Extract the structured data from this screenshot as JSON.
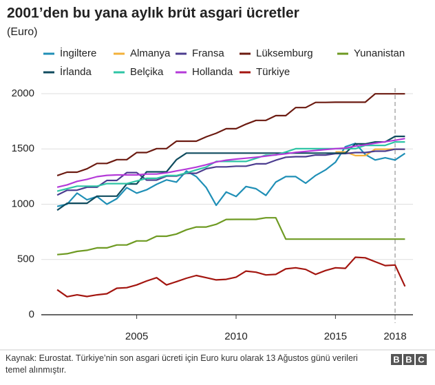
{
  "chart_data": {
    "type": "line",
    "title": "2001’den bu yana aylık brüt asgari ücretler",
    "subtitle": "(Euro)",
    "x": [
      2001,
      2001.5,
      2002,
      2002.5,
      2003,
      2003.5,
      2004,
      2004.5,
      2005,
      2005.5,
      2006,
      2006.5,
      2007,
      2007.5,
      2008,
      2008.5,
      2009,
      2009.5,
      2010,
      2010.5,
      2011,
      2011.5,
      2012,
      2012.5,
      2013,
      2013.5,
      2014,
      2014.5,
      2015,
      2015.5,
      2016,
      2016.5,
      2017,
      2017.5,
      2018,
      2018.5
    ],
    "xlim": [
      2000.2,
      2018.9
    ],
    "xticks": [
      2005,
      2010,
      2015,
      2018
    ],
    "ylim": [
      0,
      2000
    ],
    "yticks": [
      0,
      500,
      1000,
      1500,
      2000
    ],
    "grid": true,
    "reference_line_x": 2018,
    "series": [
      {
        "name": "İngiltere",
        "color": "#1f8fb6",
        "values": [
          980,
          1000,
          1100,
          1040,
          1070,
          1000,
          1050,
          1150,
          1100,
          1130,
          1180,
          1220,
          1200,
          1300,
          1250,
          1150,
          990,
          1110,
          1070,
          1160,
          1140,
          1080,
          1200,
          1250,
          1250,
          1190,
          1260,
          1310,
          1380,
          1520,
          1550,
          1450,
          1400,
          1420,
          1400,
          1460
        ]
      },
      {
        "name": "Almanya",
        "color": "#f3b13a",
        "values": [
          null,
          null,
          null,
          null,
          null,
          null,
          null,
          null,
          null,
          null,
          null,
          null,
          null,
          null,
          null,
          null,
          null,
          null,
          null,
          null,
          null,
          null,
          null,
          null,
          null,
          null,
          null,
          null,
          1473,
          1473,
          1440,
          1440,
          1498,
          1498,
          1498,
          1498
        ]
      },
      {
        "name": "Fransa",
        "color": "#4b3c8f",
        "values": [
          1083,
          1126,
          1127,
          1154,
          1154,
          1215,
          1215,
          1286,
          1286,
          1218,
          1218,
          1254,
          1254,
          1280,
          1280,
          1321,
          1338,
          1338,
          1344,
          1344,
          1365,
          1365,
          1398,
          1425,
          1430,
          1430,
          1445,
          1445,
          1458,
          1458,
          1467,
          1467,
          1480,
          1480,
          1498,
          1498
        ]
      },
      {
        "name": "Lüksemburg",
        "color": "#6b1a10",
        "values": [
          1259,
          1290,
          1290,
          1320,
          1369,
          1369,
          1403,
          1403,
          1467,
          1467,
          1503,
          1503,
          1570,
          1570,
          1570,
          1610,
          1642,
          1683,
          1683,
          1724,
          1758,
          1758,
          1801,
          1801,
          1874,
          1874,
          1921,
          1921,
          1923,
          1923,
          1923,
          1923,
          1999,
          1999,
          1999,
          1999
        ]
      },
      {
        "name": "Yunanistan",
        "color": "#6e9a22",
        "values": [
          544,
          552,
          573,
          583,
          605,
          605,
          631,
          631,
          668,
          668,
          710,
          710,
          730,
          768,
          794,
          794,
          818,
          862,
          863,
          863,
          863,
          877,
          877,
          684,
          684,
          684,
          684,
          684,
          684,
          684,
          684,
          684,
          684,
          684,
          684,
          684
        ]
      },
      {
        "name": "İrlanda",
        "color": "#0f4b5e",
        "values": [
          946,
          1009,
          1009,
          1009,
          1073,
          1073,
          1073,
          1183,
          1183,
          1293,
          1293,
          1293,
          1403,
          1462,
          1462,
          1462,
          1462,
          1462,
          1462,
          1462,
          1462,
          1462,
          1462,
          1462,
          1462,
          1462,
          1462,
          1462,
          1462,
          1462,
          1546,
          1546,
          1563,
          1563,
          1614,
          1614
        ]
      },
      {
        "name": "Belçika",
        "color": "#2ec4a5",
        "values": [
          1118,
          1140,
          1163,
          1163,
          1163,
          1186,
          1186,
          1186,
          1210,
          1234,
          1234,
          1259,
          1259,
          1283,
          1310,
          1336,
          1387,
          1387,
          1387,
          1387,
          1415,
          1444,
          1444,
          1472,
          1502,
          1502,
          1502,
          1502,
          1502,
          1502,
          1502,
          1532,
          1532,
          1532,
          1563,
          1563
        ]
      },
      {
        "name": "Hollanda",
        "color": "#b43ad8",
        "values": [
          1154,
          1175,
          1207,
          1225,
          1249,
          1261,
          1265,
          1265,
          1265,
          1273,
          1273,
          1284,
          1301,
          1317,
          1335,
          1357,
          1382,
          1398,
          1408,
          1416,
          1425,
          1435,
          1447,
          1456,
          1469,
          1477,
          1486,
          1495,
          1502,
          1508,
          1525,
          1537,
          1552,
          1565,
          1578,
          1594
        ]
      },
      {
        "name": "Türkiye",
        "color": "#a3150f",
        "values": [
          226,
          163,
          180,
          165,
          180,
          190,
          240,
          245,
          270,
          305,
          335,
          270,
          300,
          330,
          355,
          335,
          315,
          320,
          340,
          395,
          385,
          360,
          365,
          415,
          425,
          410,
          365,
          400,
          425,
          420,
          520,
          515,
          480,
          445,
          450,
          257
        ]
      }
    ],
    "source": "Kaynak: Eurostat. Türkiye’nin son asgari ücreti için Euro kuru olarak 13 Ağustos günü verileri temel alınmıştır.",
    "logo": [
      "B",
      "B",
      "C"
    ]
  }
}
